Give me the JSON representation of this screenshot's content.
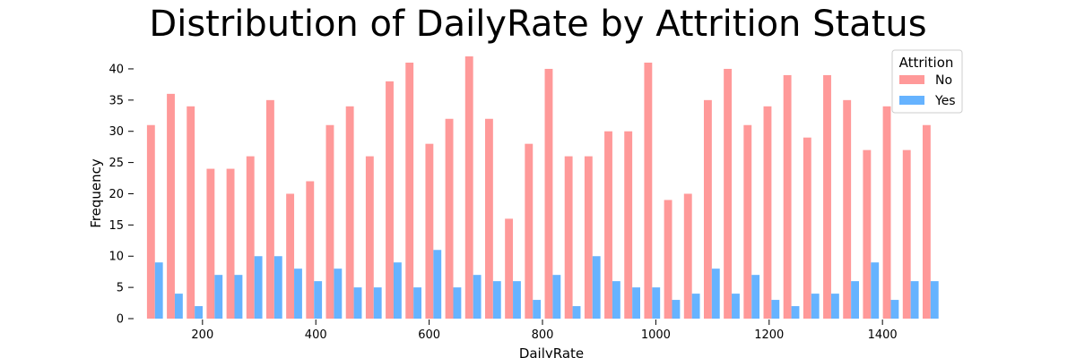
{
  "chart_data": {
    "type": "bar",
    "title": "Distribution of DailyRate by Attrition Status",
    "xlabel": "DailyRate",
    "ylabel": "Frequency",
    "xlim": [
      80,
      1520
    ],
    "ylim": [
      0,
      42
    ],
    "x_ticks": [
      200,
      400,
      600,
      800,
      1000,
      1200,
      1400
    ],
    "y_ticks": [
      0,
      5,
      10,
      15,
      20,
      25,
      30,
      35,
      40
    ],
    "grid": false,
    "legend": {
      "title": "Attrition",
      "placement": "top-right"
    },
    "bin_width": 35.1,
    "bin_start": 102,
    "x": [
      119.6,
      154.7,
      189.8,
      224.9,
      260.0,
      295.1,
      330.2,
      365.3,
      400.4,
      435.5,
      470.6,
      505.7,
      540.8,
      575.9,
      611.0,
      646.1,
      681.2,
      716.3,
      751.4,
      786.5,
      821.6,
      856.7,
      891.8,
      926.9,
      962.0,
      997.1,
      1032.2,
      1067.3,
      1102.4,
      1137.5,
      1172.6,
      1207.7,
      1242.8,
      1277.9,
      1313.0,
      1348.1,
      1383.2,
      1418.3,
      1453.4,
      1488.5
    ],
    "series": [
      {
        "name": "No",
        "color": "#ff9999",
        "values": [
          31,
          36,
          34,
          24,
          24,
          26,
          35,
          20,
          22,
          31,
          34,
          26,
          38,
          41,
          28,
          32,
          42,
          32,
          16,
          28,
          40,
          26,
          26,
          30,
          30,
          41,
          19,
          20,
          35,
          40,
          31,
          34,
          39,
          29,
          39,
          35,
          27,
          34,
          27,
          31
        ]
      },
      {
        "name": "Yes",
        "color": "#66b3ff",
        "values": [
          9,
          4,
          2,
          7,
          7,
          10,
          10,
          8,
          6,
          8,
          5,
          5,
          9,
          5,
          11,
          5,
          7,
          6,
          6,
          3,
          7,
          2,
          10,
          6,
          5,
          5,
          3,
          4,
          8,
          4,
          7,
          3,
          2,
          4,
          4,
          6,
          9,
          3,
          6,
          6
        ]
      }
    ]
  }
}
